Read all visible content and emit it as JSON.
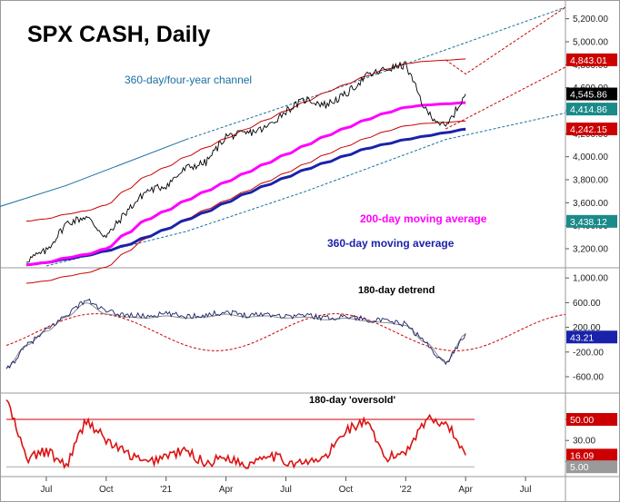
{
  "title": "SPX CASH, Daily",
  "colors": {
    "price": "#000000",
    "ma200": "#ff00ff",
    "ma360": "#1a22aa",
    "band": "#cc0000",
    "channel": "#1a6fa0",
    "oversold": "#dd1111",
    "detrend": "#1a2266"
  },
  "x_axis": {
    "ticks": [
      "Jul",
      "Oct",
      "'21",
      "Apr",
      "Jul",
      "Oct",
      "'22",
      "Apr",
      "Jul"
    ]
  },
  "chart_data": [
    {
      "type": "line",
      "panel": "price",
      "title": "SPX CASH, Daily",
      "ylim": [
        3050,
        5300
      ],
      "yticks": [
        "5,200.00",
        "5,000.00",
        "4,800.00",
        "4,600.00",
        "4,400.00",
        "4,200.00",
        "4,000.00",
        "3,800.00",
        "3,600.00",
        "3,400.00",
        "3,200.00"
      ],
      "ytick_values": [
        5200,
        5000,
        4800,
        4600,
        4400,
        4200,
        4000,
        3800,
        3600,
        3400,
        3200
      ],
      "dates": [
        "2020-06",
        "2020-07",
        "2020-08",
        "2020-09",
        "2020-10",
        "2020-11",
        "2020-12",
        "2021-01",
        "2021-02",
        "2021-03",
        "2021-04",
        "2021-05",
        "2021-06",
        "2021-07",
        "2021-08",
        "2021-09",
        "2021-10",
        "2021-11",
        "2021-12",
        "2022-01",
        "2022-02",
        "2022-03",
        "2022-04"
      ],
      "series": [
        {
          "values": [
            3100,
            3180,
            3420,
            3480,
            3300,
            3520,
            3700,
            3750,
            3900,
            3950,
            4180,
            4200,
            4250,
            4400,
            4500,
            4450,
            4540,
            4700,
            4760,
            4800,
            4400,
            4250,
            4545
          ]
        },
        {
          "values": [
            3060,
            3080,
            3120,
            3150,
            3200,
            3330,
            3450,
            3530,
            3620,
            3700,
            3780,
            3860,
            3940,
            4020,
            4100,
            4180,
            4250,
            4320,
            4380,
            4430,
            4450,
            4460,
            4470
          ]
        },
        {
          "values": [
            3060,
            3080,
            3110,
            3140,
            3180,
            3230,
            3300,
            3370,
            3450,
            3520,
            3600,
            3680,
            3750,
            3820,
            3890,
            3950,
            4010,
            4070,
            4110,
            4150,
            4180,
            4210,
            4240
          ]
        }
      ],
      "labels": [
        {
          "text": "4,843.01",
          "value": 4843.01,
          "color": "#cc0000"
        },
        {
          "text": "4,545.86",
          "value": 4545.86,
          "color": "#000000"
        },
        {
          "text": "4,414.86",
          "value": 4414.86,
          "color": "#1a8a8a"
        },
        {
          "text": "4,242.15",
          "value": 4242.15,
          "color": "#cc0000"
        },
        {
          "text": "3,438.12",
          "value": 3438.12,
          "color": "#1a8a8a"
        }
      ],
      "annotations": {
        "channel": "360-day/four-year channel",
        "ma200": "200-day moving average",
        "ma360": "360-day moving average"
      }
    },
    {
      "type": "line",
      "panel": "detrend",
      "title": "180-day detrend",
      "ylim": [
        -850,
        1150
      ],
      "yticks": [
        "1,000.00",
        "600.00",
        "200.00",
        "-200.00",
        "-600.00"
      ],
      "ytick_values": [
        1000,
        600,
        200,
        -200,
        -600
      ],
      "dates": [
        "2020-05",
        "2020-06",
        "2020-07",
        "2020-08",
        "2020-09",
        "2020-10",
        "2020-11",
        "2020-12",
        "2021-01",
        "2021-02",
        "2021-03",
        "2021-04",
        "2021-05",
        "2021-06",
        "2021-07",
        "2021-08",
        "2021-09",
        "2021-10",
        "2021-11",
        "2021-12",
        "2022-01",
        "2022-02",
        "2022-03",
        "2022-04"
      ],
      "series": [
        {
          "values": [
            -500,
            -100,
            150,
            400,
            650,
            450,
            400,
            380,
            420,
            380,
            400,
            450,
            400,
            420,
            380,
            400,
            350,
            380,
            330,
            300,
            250,
            -50,
            -400,
            100
          ]
        }
      ],
      "labels": [
        {
          "text": "43.21",
          "value": 43.21,
          "color": "#1a22aa"
        }
      ]
    },
    {
      "type": "line",
      "panel": "oversold",
      "title": "180-day 'oversold'",
      "ylim": [
        0,
        75
      ],
      "yticks": [
        "50.00",
        "30.00",
        "10.00"
      ],
      "ytick_values": [
        50,
        30,
        10
      ],
      "dates": [
        "2020-05",
        "2020-06",
        "2020-07",
        "2020-08",
        "2020-09",
        "2020-10",
        "2020-11",
        "2020-12",
        "2021-01",
        "2021-02",
        "2021-03",
        "2021-04",
        "2021-05",
        "2021-06",
        "2021-07",
        "2021-08",
        "2021-09",
        "2021-10",
        "2021-11",
        "2021-12",
        "2022-01",
        "2022-02",
        "2022-03",
        "2022-04"
      ],
      "series": [
        {
          "values": [
            70,
            12,
            20,
            6,
            50,
            30,
            18,
            8,
            16,
            20,
            8,
            15,
            6,
            18,
            10,
            8,
            14,
            40,
            48,
            12,
            20,
            50,
            48,
            16
          ]
        }
      ],
      "labels": [
        {
          "text": "50.00",
          "value": 50,
          "color": "#cc0000"
        },
        {
          "text": "16.09",
          "value": 16.09,
          "color": "#cc0000"
        },
        {
          "text": "5.00",
          "value": 5,
          "color": "#9a9a9a"
        }
      ]
    }
  ]
}
